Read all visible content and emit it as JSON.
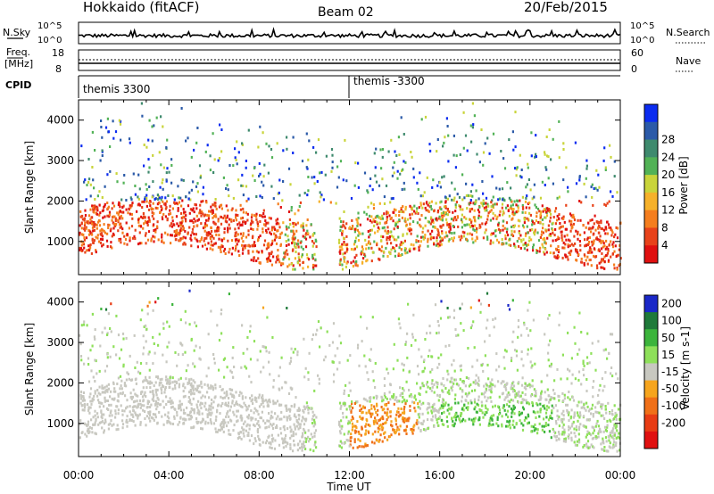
{
  "header": {
    "station": "Hokkaido (fitACF)",
    "beam": "Beam 02",
    "date": "20/Feb/2015"
  },
  "noise_panel": {
    "left_label": "N.Sky",
    "right_label": "N.Search",
    "left_ticks": [
      "10^5",
      "10^0"
    ],
    "right_ticks": [
      "10^5",
      "10^0"
    ]
  },
  "freq_panel": {
    "left_label_1": "Freq.",
    "left_label_2": "[MHz]",
    "right_label": "Nave",
    "left_ticks": [
      "18",
      "8"
    ],
    "right_ticks": [
      "60",
      "0"
    ]
  },
  "cpid_panel": {
    "label": "CPID",
    "segments": [
      {
        "text": "themis 3300",
        "start_hour": 0
      },
      {
        "text": "themis -3300",
        "start_hour": 12.0
      }
    ]
  },
  "chart_data": [
    {
      "type": "heatmap",
      "name": "power-panel",
      "ylabel": "Slant Range [km]",
      "xlabel": "Time UT",
      "xlim": [
        0,
        24
      ],
      "ylim": [
        180,
        4500
      ],
      "x_ticks": [
        "00:00",
        "04:00",
        "08:00",
        "12:00",
        "16:00",
        "20:00",
        "00:00"
      ],
      "y_ticks": [
        "1000",
        "2000",
        "3000",
        "4000"
      ],
      "colorbar": {
        "label": "Power [dB]",
        "ticks": [
          "4",
          "8",
          "12",
          "16",
          "20",
          "24",
          "28"
        ],
        "colors": [
          "#0b2cf0",
          "#2b5aa8",
          "#3f8a6e",
          "#52b256",
          "#c9d43a",
          "#f6b12a",
          "#f57e1e",
          "#e8421a",
          "#e01010"
        ]
      }
    },
    {
      "type": "heatmap",
      "name": "velocity-panel",
      "ylabel": "Slant Range [km]",
      "xlabel": "Time UT",
      "xlim": [
        0,
        24
      ],
      "ylim": [
        180,
        4500
      ],
      "x_ticks": [
        "00:00",
        "04:00",
        "08:00",
        "12:00",
        "16:00",
        "20:00",
        "00:00"
      ],
      "y_ticks": [
        "1000",
        "2000",
        "3000",
        "4000"
      ],
      "colorbar": {
        "label": "Velocity [m s-1]",
        "ticks": [
          "200",
          "100",
          "50",
          "15",
          "-15",
          "-50",
          "-100",
          "-200"
        ],
        "colors": [
          "#1a28c8",
          "#1f7a3a",
          "#3cb43c",
          "#8ee05a",
          "#c8c8c0",
          "#f6a51e",
          "#f07018",
          "#e83c14",
          "#e01010"
        ]
      }
    }
  ]
}
